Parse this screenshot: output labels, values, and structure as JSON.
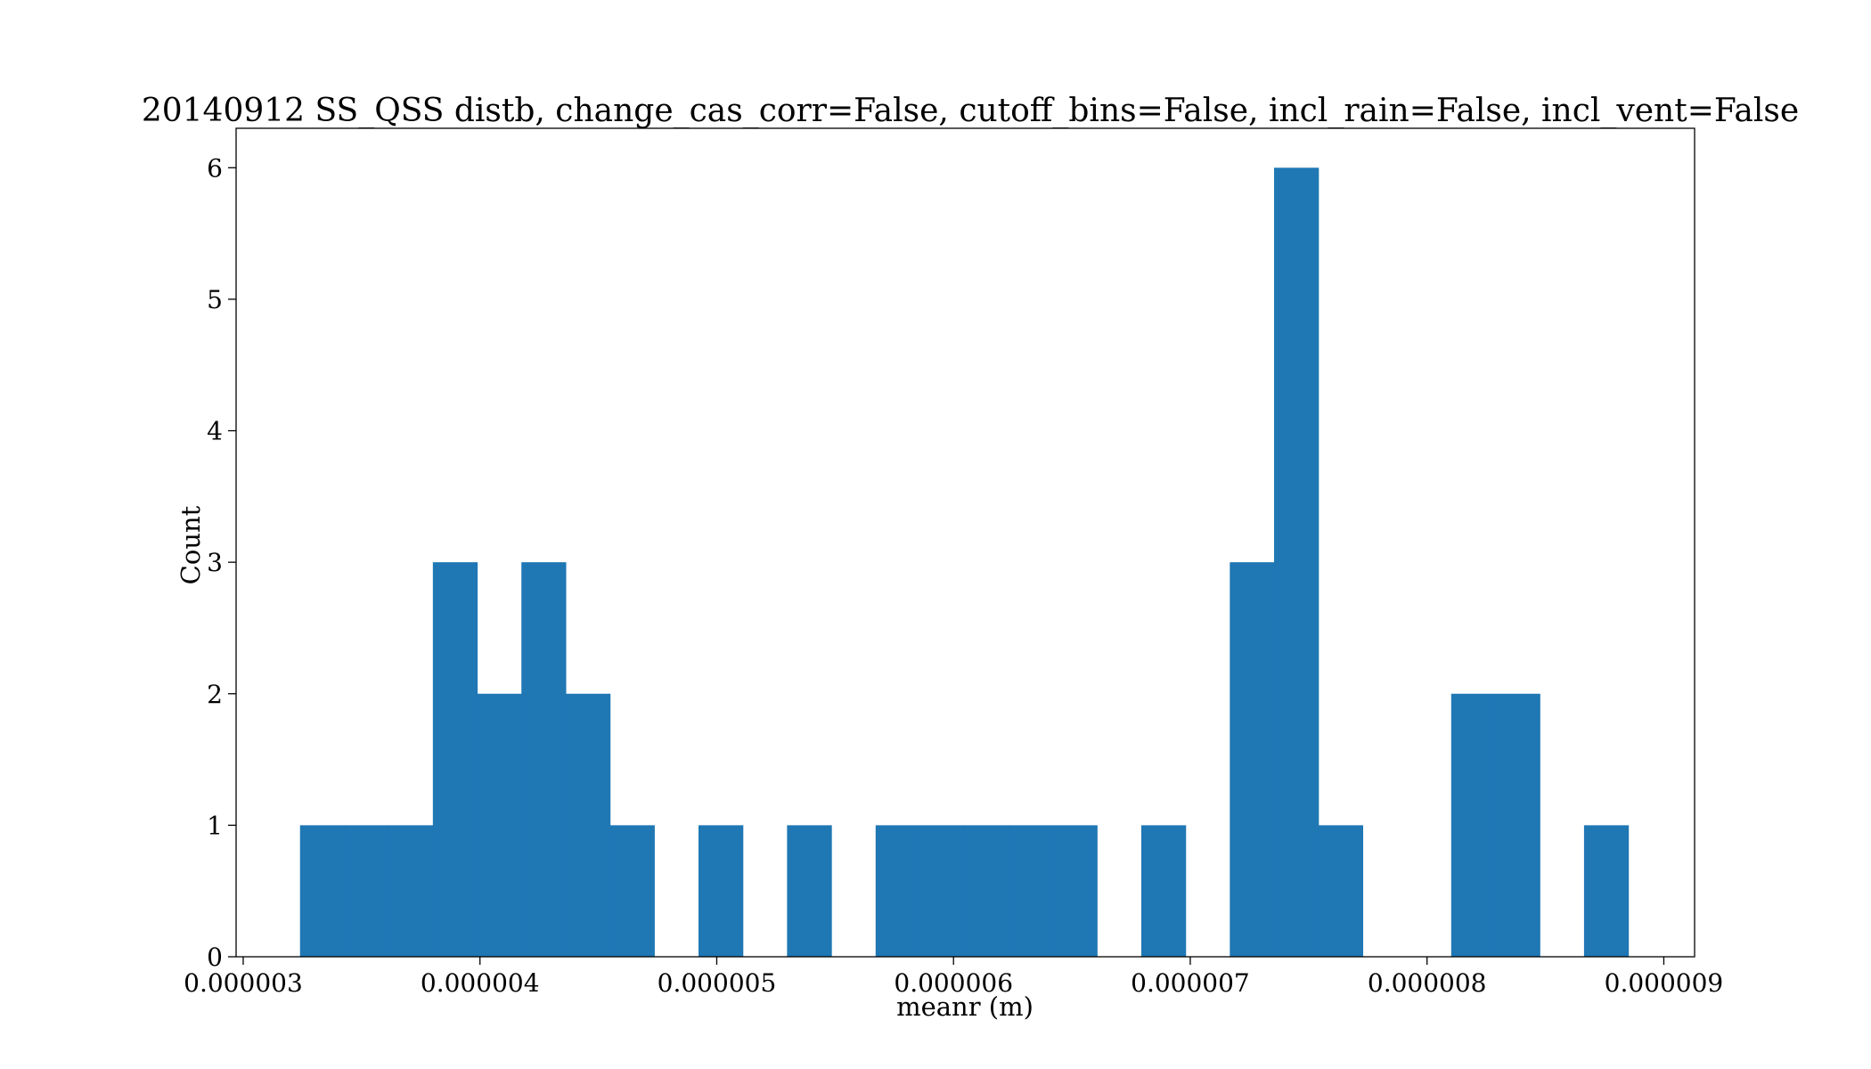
{
  "chart_data": {
    "type": "bar",
    "title": "20140912 SS_QSS distb, change_cas_corr=False, cutoff_bins=False, incl_rain=False, incl_vent=False",
    "xlabel": "meanr (m)",
    "ylabel": "Count",
    "xlim": [
      2.97e-06,
      9.13e-06
    ],
    "ylim": [
      0,
      6.3
    ],
    "xticks": [
      3e-06,
      4e-06,
      5e-06,
      6e-06,
      7e-06,
      8e-06,
      9e-06
    ],
    "xtick_labels": [
      "0.000003",
      "0.000004",
      "0.000005",
      "0.000006",
      "0.000007",
      "0.000008",
      "0.000009"
    ],
    "yticks": [
      0,
      1,
      2,
      3,
      4,
      5,
      6
    ],
    "ytick_labels": [
      "0",
      "1",
      "2",
      "3",
      "4",
      "5",
      "6"
    ],
    "bin_start": 3.24e-06,
    "bin_width": 1.87e-07,
    "counts": [
      1,
      1,
      1,
      3,
      2,
      3,
      2,
      1,
      0,
      1,
      0,
      1,
      0,
      1,
      1,
      1,
      1,
      1,
      0,
      1,
      0,
      3,
      6,
      1,
      0,
      0,
      2,
      2,
      0,
      1
    ],
    "grid": false,
    "color": "#1f77b4"
  }
}
